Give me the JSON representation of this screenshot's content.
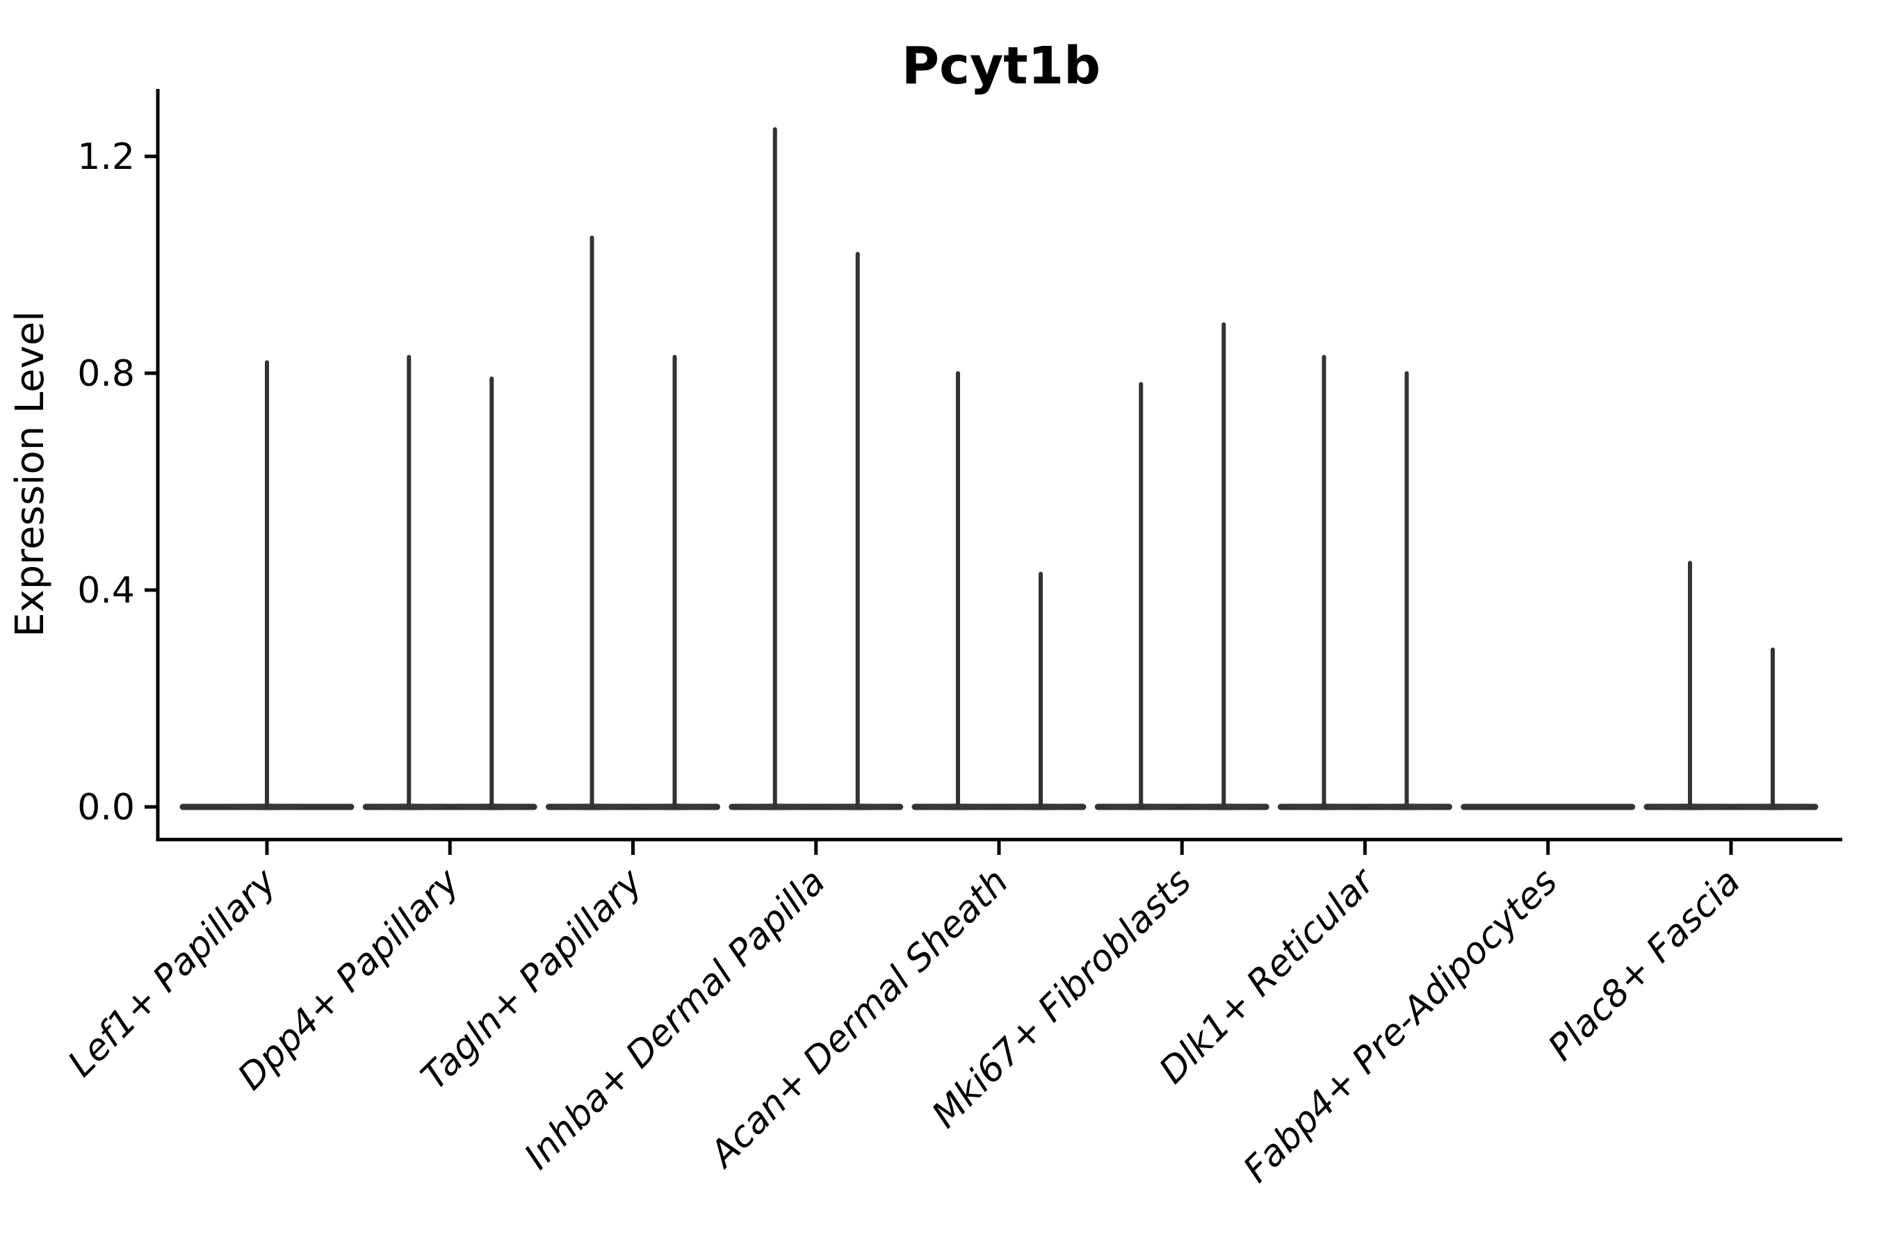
{
  "title": "Pcyt1b",
  "ylabel": "Expression Level",
  "chart_data": {
    "type": "violin",
    "title": "Pcyt1b",
    "xlabel": "",
    "ylabel": "Expression Level",
    "ylim": [
      -0.06,
      1.32
    ],
    "yticks": [
      0.0,
      0.4,
      0.8,
      1.2
    ],
    "ytick_labels": [
      "0.0",
      "0.4",
      "0.8",
      "1.2"
    ],
    "legend": "none",
    "grid": false,
    "description": "Violin plot of Pcyt1b expression per fibroblast subtype; expression is near zero in all clusters so each violin collapses to a flat baseline at 0 with thin density spikes reaching the maximum expressing cells.",
    "categories": [
      "Lef1+ Papillary",
      "Dpp4+ Papillary",
      "Tagln+ Papillary",
      "Inhba+ Dermal Papilla",
      "Acan+ Dermal Sheath",
      "Mki67+ Fibroblasts",
      "Dlk1+ Reticular",
      "Fabp4+ Pre-Adipocytes",
      "Plac8+ Fascia"
    ],
    "violins": [
      {
        "category": "Lef1+ Papillary",
        "baseline_value": 0.0,
        "spikes": [
          {
            "pos": "center",
            "max": 0.82
          }
        ]
      },
      {
        "category": "Dpp4+ Papillary",
        "baseline_value": 0.0,
        "spikes": [
          {
            "pos": "left",
            "max": 0.83
          },
          {
            "pos": "right",
            "max": 0.79
          }
        ]
      },
      {
        "category": "Tagln+ Papillary",
        "baseline_value": 0.0,
        "spikes": [
          {
            "pos": "left",
            "max": 1.05
          },
          {
            "pos": "right",
            "max": 0.83
          }
        ]
      },
      {
        "category": "Inhba+ Dermal Papilla",
        "baseline_value": 0.0,
        "spikes": [
          {
            "pos": "left",
            "max": 1.25
          },
          {
            "pos": "right",
            "max": 1.02
          }
        ]
      },
      {
        "category": "Acan+ Dermal Sheath",
        "baseline_value": 0.0,
        "spikes": [
          {
            "pos": "left",
            "max": 0.8
          },
          {
            "pos": "right",
            "max": 0.43
          }
        ]
      },
      {
        "category": "Mki67+ Fibroblasts",
        "baseline_value": 0.0,
        "spikes": [
          {
            "pos": "left",
            "max": 0.78
          },
          {
            "pos": "right",
            "max": 0.89
          }
        ]
      },
      {
        "category": "Dlk1+ Reticular",
        "baseline_value": 0.0,
        "spikes": [
          {
            "pos": "left",
            "max": 0.83
          },
          {
            "pos": "right",
            "max": 0.8
          }
        ]
      },
      {
        "category": "Fabp4+ Pre-Adipocytes",
        "baseline_value": 0.0,
        "spikes": []
      },
      {
        "category": "Plac8+ Fascia",
        "baseline_value": 0.0,
        "spikes": [
          {
            "pos": "left",
            "max": 0.45
          },
          {
            "pos": "right",
            "max": 0.29
          }
        ]
      }
    ],
    "colors": {
      "violin_stroke": "#333333",
      "violin_fill_hint": "#444444",
      "axis": "#000000",
      "text": "#000000",
      "background": "#ffffff"
    }
  }
}
